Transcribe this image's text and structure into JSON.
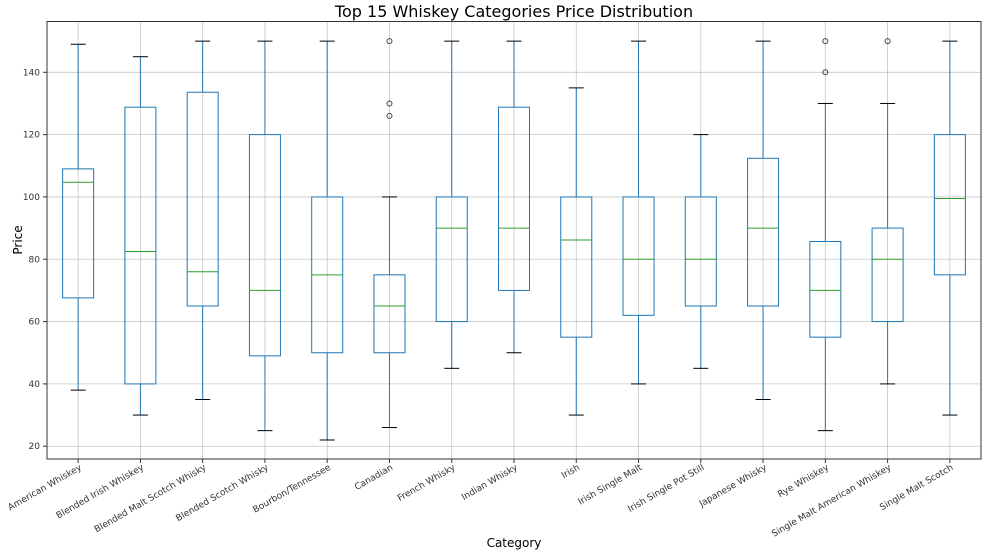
{
  "chart_data": {
    "type": "box",
    "title": "Top 15 Whiskey Categories Price Distribution",
    "xlabel": "Category",
    "ylabel": "Price",
    "ylim": [
      15.9,
      156.3
    ],
    "yticks": [
      20,
      40,
      60,
      80,
      100,
      120,
      140
    ],
    "grid": true,
    "colors": {
      "box": "#1f77b4",
      "median": "#2ca02c",
      "cap": "#000000",
      "grid": "#b0b0b0",
      "flier": "#444444"
    },
    "categories": [
      "American Whiskey",
      "Blended Irish Whiskey",
      "Blended Malt Scotch Whisky",
      "Blended Scotch Whisky",
      "Bourbon/Tennessee",
      "Canadian",
      "French Whisky",
      "Indian Whisky",
      "Irish",
      "Irish Single Malt",
      "Irish Single Pot Still",
      "Japanese Whisky",
      "Rye Whiskey",
      "Single Malt American Whiskey",
      "Single Malt Scotch"
    ],
    "boxes": [
      {
        "low": 38,
        "q1": 67.6,
        "median": 104.7,
        "q3": 109,
        "high": 149,
        "fliers": []
      },
      {
        "low": 30,
        "q1": 40,
        "median": 82.5,
        "q3": 128.8,
        "high": 145,
        "fliers": []
      },
      {
        "low": 35,
        "q1": 65,
        "median": 76,
        "q3": 133.6,
        "high": 150,
        "fliers": []
      },
      {
        "low": 25,
        "q1": 49,
        "median": 70,
        "q3": 120,
        "high": 150,
        "fliers": []
      },
      {
        "low": 22,
        "q1": 50,
        "median": 75,
        "q3": 100,
        "high": 150,
        "fliers": []
      },
      {
        "low": 26,
        "q1": 50,
        "median": 65,
        "q3": 75,
        "high": 100,
        "fliers": [
          126,
          130,
          150
        ]
      },
      {
        "low": 45,
        "q1": 60,
        "median": 90,
        "q3": 100,
        "high": 150,
        "fliers": []
      },
      {
        "low": 50,
        "q1": 70,
        "median": 90,
        "q3": 128.8,
        "high": 150,
        "fliers": []
      },
      {
        "low": 30,
        "q1": 55,
        "median": 86.2,
        "q3": 100,
        "high": 135,
        "fliers": []
      },
      {
        "low": 40,
        "q1": 62,
        "median": 80,
        "q3": 100,
        "high": 150,
        "fliers": []
      },
      {
        "low": 45,
        "q1": 65,
        "median": 80,
        "q3": 100,
        "high": 120,
        "fliers": []
      },
      {
        "low": 35,
        "q1": 65,
        "median": 90,
        "q3": 112.4,
        "high": 150,
        "fliers": []
      },
      {
        "low": 25,
        "q1": 55,
        "median": 70,
        "q3": 85.7,
        "high": 130,
        "fliers": [
          140,
          150
        ]
      },
      {
        "low": 40,
        "q1": 60,
        "median": 80,
        "q3": 90,
        "high": 130,
        "fliers": [
          150
        ]
      },
      {
        "low": 30,
        "q1": 75,
        "median": 99.5,
        "q3": 120,
        "high": 150,
        "fliers": []
      }
    ]
  }
}
